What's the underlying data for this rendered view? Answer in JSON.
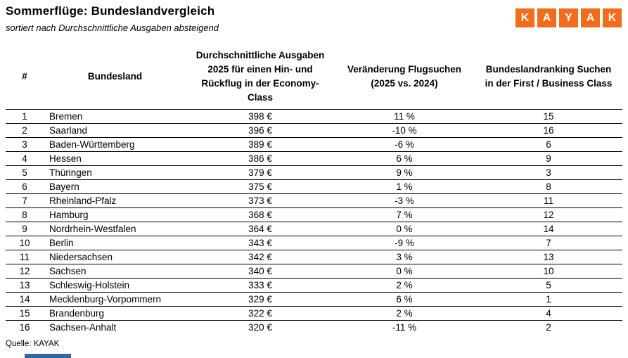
{
  "header": {
    "title": "Sommerflüge: Bundeslandvergleich",
    "subtitle": "sortiert nach Durchschnittliche Ausgaben absteigend",
    "logo_letters": [
      "K",
      "A",
      "Y",
      "A",
      "K"
    ],
    "logo_color": "#f26c1c"
  },
  "table": {
    "headers": [
      "#",
      "Bundesland",
      "Durchschnittliche Ausgaben\n2025 für einen Hin- und\nRückflug in der Economy-\nClass",
      "Veränderung Flugsuchen\n(2025 vs. 2024)",
      "Bundeslandranking Suchen\nin der First / Business Class"
    ]
  },
  "footer": {
    "source": "Quelle: KAYAK"
  },
  "chart_data": {
    "type": "table",
    "title": "Sommerflüge: Bundeslandvergleich",
    "subtitle": "sortiert nach Durchschnittliche Ausgaben absteigend",
    "columns": [
      "#",
      "Bundesland",
      "Durchschnittliche Ausgaben 2025 für einen Hin- und Rückflug in der Economy-Class",
      "Veränderung Flugsuchen (2025 vs. 2024)",
      "Bundeslandranking Suchen in der First / Business Class"
    ],
    "units": {
      "avg_spend": "€",
      "change": "%"
    },
    "sorted_by": "Durchschnittliche Ausgaben absteigend",
    "rows": [
      {
        "rank": 1,
        "state": "Bremen",
        "avg_spend_eur": 398,
        "change_pct": 11,
        "first_business_rank": 15
      },
      {
        "rank": 2,
        "state": "Saarland",
        "avg_spend_eur": 396,
        "change_pct": -10,
        "first_business_rank": 16
      },
      {
        "rank": 3,
        "state": "Baden-Württemberg",
        "avg_spend_eur": 389,
        "change_pct": -6,
        "first_business_rank": 6
      },
      {
        "rank": 4,
        "state": "Hessen",
        "avg_spend_eur": 386,
        "change_pct": 6,
        "first_business_rank": 9
      },
      {
        "rank": 5,
        "state": "Thüringen",
        "avg_spend_eur": 379,
        "change_pct": 9,
        "first_business_rank": 3
      },
      {
        "rank": 6,
        "state": "Bayern",
        "avg_spend_eur": 375,
        "change_pct": 1,
        "first_business_rank": 8
      },
      {
        "rank": 7,
        "state": "Rheinland-Pfalz",
        "avg_spend_eur": 373,
        "change_pct": -3,
        "first_business_rank": 11
      },
      {
        "rank": 8,
        "state": "Hamburg",
        "avg_spend_eur": 368,
        "change_pct": 7,
        "first_business_rank": 12
      },
      {
        "rank": 9,
        "state": "Nordrhein-Westfalen",
        "avg_spend_eur": 364,
        "change_pct": 0,
        "first_business_rank": 14
      },
      {
        "rank": 10,
        "state": "Berlin",
        "avg_spend_eur": 343,
        "change_pct": -9,
        "first_business_rank": 7
      },
      {
        "rank": 11,
        "state": "Niedersachsen",
        "avg_spend_eur": 342,
        "change_pct": 3,
        "first_business_rank": 13
      },
      {
        "rank": 12,
        "state": "Sachsen",
        "avg_spend_eur": 340,
        "change_pct": 0,
        "first_business_rank": 10
      },
      {
        "rank": 13,
        "state": "Schleswig-Holstein",
        "avg_spend_eur": 333,
        "change_pct": 2,
        "first_business_rank": 5
      },
      {
        "rank": 14,
        "state": "Mecklenburg-Vorpommern",
        "avg_spend_eur": 329,
        "change_pct": 6,
        "first_business_rank": 1
      },
      {
        "rank": 15,
        "state": "Brandenburg",
        "avg_spend_eur": 322,
        "change_pct": 2,
        "first_business_rank": 4
      },
      {
        "rank": 16,
        "state": "Sachsen-Anhalt",
        "avg_spend_eur": 320,
        "change_pct": -11,
        "first_business_rank": 2
      }
    ],
    "source": "Quelle: KAYAK"
  }
}
